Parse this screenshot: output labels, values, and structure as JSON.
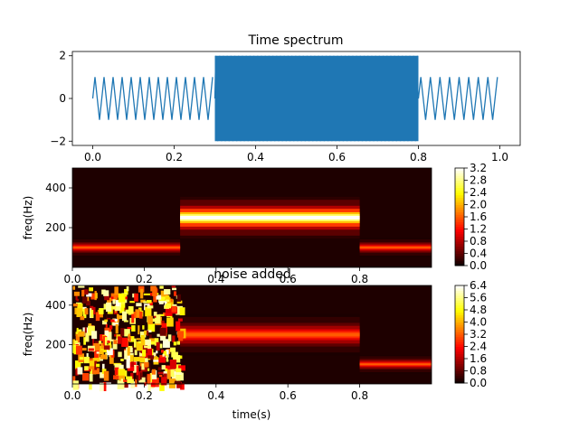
{
  "chart_data": [
    {
      "type": "line",
      "title": "Time spectrum",
      "xlabel": "",
      "ylabel": "",
      "xlim": [
        -0.05,
        1.05
      ],
      "ylim": [
        -2.2,
        2.2
      ],
      "xticks": [
        "0.0",
        "0.2",
        "0.4",
        "0.6",
        "0.8",
        "1.0"
      ],
      "xtick_values": [
        0.0,
        0.2,
        0.4,
        0.6,
        0.8,
        1.0
      ],
      "yticks": [
        "−2",
        "0",
        "2"
      ],
      "ytick_values": [
        -2,
        0,
        2
      ],
      "color": "#1f77b4",
      "segments": [
        {
          "t_start": 0.0,
          "t_end": 0.3,
          "amplitude": 1,
          "freq_hz": 100
        },
        {
          "t_start": 0.3,
          "t_end": 0.8,
          "amplitude": 2,
          "freq_hz": 250
        },
        {
          "t_start": 0.8,
          "t_end": 1.0,
          "amplitude": 1,
          "freq_hz": 100
        }
      ]
    },
    {
      "type": "heatmap",
      "title": "",
      "xlabel": "",
      "ylabel": "freq(Hz)",
      "xlim": [
        0,
        1.0
      ],
      "ylim": [
        0,
        500
      ],
      "xticks": [
        "0.0",
        "0.2",
        "0.4",
        "0.6",
        "0.8"
      ],
      "xtick_values": [
        0.0,
        0.2,
        0.4,
        0.6,
        0.8
      ],
      "yticks": [
        "200",
        "400"
      ],
      "ytick_values": [
        200,
        400
      ],
      "colormap": "hot",
      "colorbar_ticks": [
        "0.0",
        "0.4",
        "0.8",
        "1.2",
        "1.6",
        "2.0",
        "2.4",
        "2.8",
        "3.2"
      ],
      "colorbar_values": [
        0.0,
        0.4,
        0.8,
        1.2,
        1.6,
        2.0,
        2.4,
        2.8,
        3.2
      ],
      "bands": [
        {
          "t_start": 0.0,
          "t_end": 0.3,
          "center_hz": 100,
          "peak": 1.6
        },
        {
          "t_start": 0.3,
          "t_end": 0.8,
          "center_hz": 250,
          "peak": 3.2
        },
        {
          "t_start": 0.8,
          "t_end": 1.0,
          "center_hz": 100,
          "peak": 1.6
        }
      ]
    },
    {
      "type": "heatmap",
      "title": "noise added",
      "xlabel": "time(s)",
      "ylabel": "freq(Hz)",
      "xlim": [
        0,
        1.0
      ],
      "ylim": [
        0,
        500
      ],
      "xticks": [
        "0.0",
        "0.2",
        "0.4",
        "0.6",
        "0.8"
      ],
      "xtick_values": [
        0.0,
        0.2,
        0.4,
        0.6,
        0.8
      ],
      "yticks": [
        "200",
        "400"
      ],
      "ytick_values": [
        200,
        400
      ],
      "colormap": "hot",
      "colorbar_ticks": [
        "0.0",
        "0.8",
        "1.6",
        "2.4",
        "3.2",
        "4.0",
        "4.8",
        "5.6",
        "6.4"
      ],
      "colorbar_values": [
        0.0,
        0.8,
        1.6,
        2.4,
        3.2,
        4.0,
        4.8,
        5.6,
        6.4
      ],
      "bands": [
        {
          "t_start": 0.3,
          "t_end": 0.8,
          "center_hz": 250,
          "peak": 3.2
        },
        {
          "t_start": 0.8,
          "t_end": 1.0,
          "center_hz": 100,
          "peak": 3.2
        }
      ],
      "noise": {
        "t_start": 0.0,
        "t_end": 0.3,
        "peak": 6.4
      }
    }
  ]
}
